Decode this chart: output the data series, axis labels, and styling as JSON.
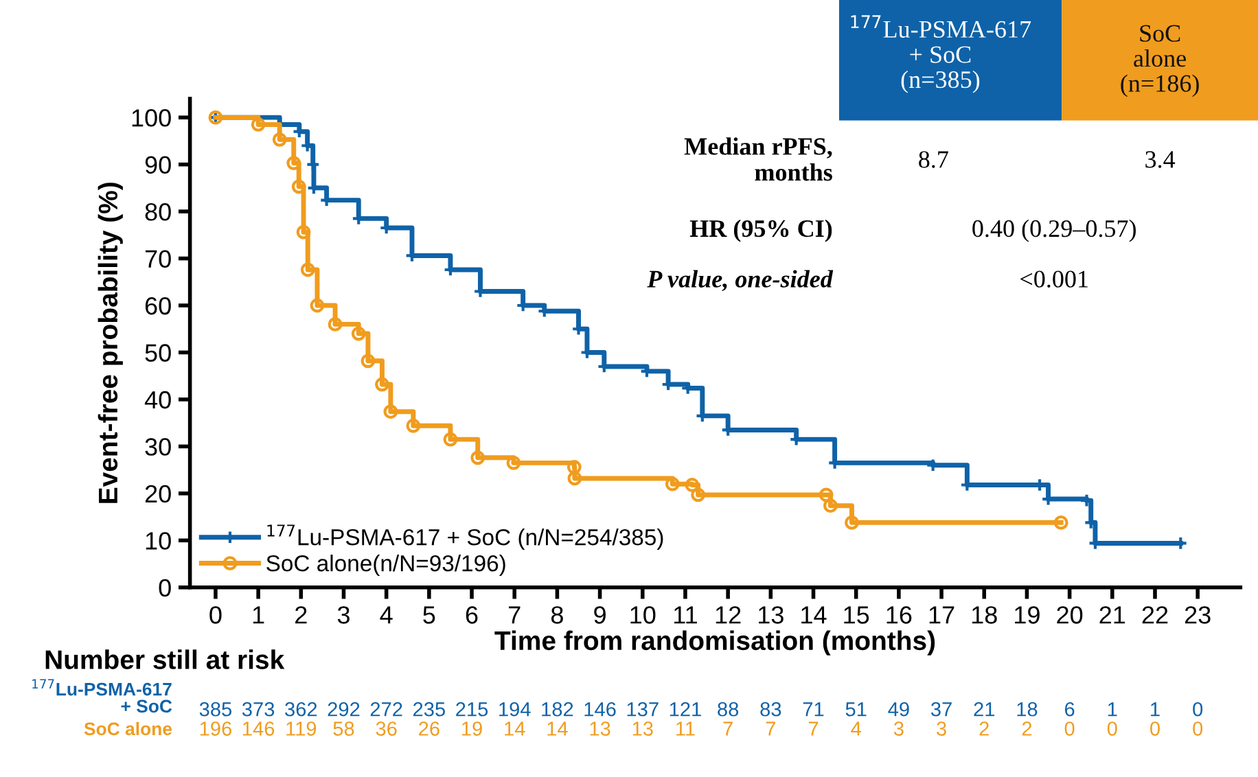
{
  "chart_data": {
    "type": "step",
    "xlabel": "Time from randomisation (months)",
    "ylabel": "Event-free probability (%)",
    "xlim": [
      -0.6,
      24
    ],
    "xticks": [
      0,
      1,
      2,
      3,
      4,
      5,
      6,
      7,
      8,
      9,
      10,
      11,
      12,
      13,
      14,
      15,
      16,
      17,
      18,
      19,
      20,
      21,
      22,
      23
    ],
    "ylim": [
      0,
      104
    ],
    "yticks": [
      0,
      10,
      20,
      30,
      40,
      50,
      60,
      70,
      80,
      90,
      100
    ],
    "grid": false,
    "legend": "bottom left",
    "line_style": "solid",
    "series": [
      {
        "name": "$^{177}$Lu-PSMA-617 + SoC (n/N=254/385)",
        "color": "#0f62a8",
        "marker": "cross",
        "x": [
          0,
          1.5,
          1.96,
          2.15,
          2.28,
          2.3,
          2.6,
          3.35,
          4.0,
          4.6,
          5.5,
          6.2,
          7.2,
          7.7,
          8.5,
          8.7,
          9.1,
          10.1,
          10.6,
          11.06,
          11.4,
          12.0,
          13.6,
          14.5,
          16.8,
          17.6,
          19.3,
          19.5,
          20.4,
          20.5,
          20.6,
          22.6
        ],
        "values": [
          100,
          98.5,
          97,
          94,
          90,
          85,
          82.4,
          78.5,
          76.5,
          70.6,
          67.6,
          63,
          60,
          58.8,
          55,
          50,
          47,
          46,
          43.2,
          42.4,
          36.5,
          33.5,
          31.5,
          26.5,
          26,
          21.8,
          21.8,
          18.8,
          18.5,
          13.8,
          9.4,
          9.4
        ]
      },
      {
        "name": "SoC alone(n/N=93/196)",
        "color": "#f09c1e",
        "marker": "circle",
        "x": [
          0,
          1.0,
          1.5,
          1.83,
          1.95,
          2.06,
          2.16,
          2.38,
          2.8,
          3.35,
          3.57,
          3.9,
          4.1,
          4.63,
          5.5,
          6.14,
          6.98,
          8.4,
          8.41,
          10.7,
          11.16,
          11.3,
          14.3,
          14.4,
          14.9,
          19.8
        ],
        "values": [
          100,
          98.5,
          95.3,
          90.3,
          85.3,
          75.6,
          67.6,
          60,
          56,
          54,
          48.2,
          43.2,
          37.4,
          34.4,
          31.5,
          27.6,
          26.5,
          25.6,
          23.2,
          22,
          21.8,
          19.7,
          19.7,
          17.4,
          13.8,
          13.8
        ]
      }
    ],
    "annotations": [
      "$^{177}$Lu-PSMA-617\n+ SoC\n(n=385)",
      "SoC\nalone\n(n=186)",
      "Median rPFS,\nmonths",
      "8.7",
      "3.4",
      "HR (95% CI)",
      "0.40 (0.29–0.57)",
      "P value, one-sided",
      "<0.001",
      "Number still at risk",
      "$^{177}$Lu-PSMA-617\n+ SoC",
      "385 373 362 292 272 235 215 194 182 146 137 121 88 83 71 51 49 37 21 18 6 1 1 0",
      "SoC alone",
      "196 146 119 58 36 26 19 14 14 13 13 11 7 7 7 4 3 3 2 2 0 0 0 0"
    ]
  }
}
